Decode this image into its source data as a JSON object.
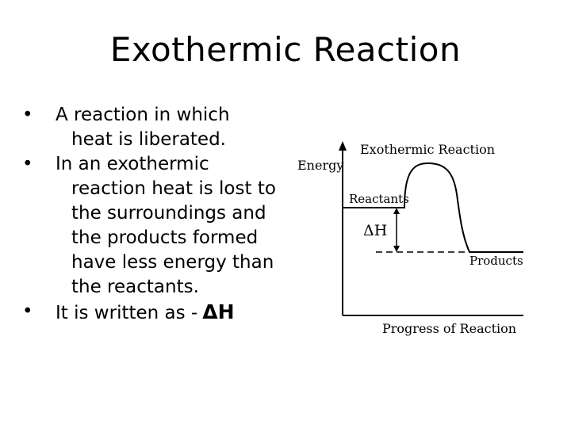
{
  "slide": {
    "title": "Exothermic Reaction",
    "bullets": [
      {
        "first_line": "A reaction in which",
        "rest": "heat is liberated."
      },
      {
        "first_line": "In an exothermic",
        "rest": "reaction heat is lost to the surroundings and the products formed have less energy than the reactants."
      },
      {
        "first_line": "It is written as -",
        "rest": "",
        "symbol": "ΔH"
      }
    ],
    "bullet_glyph": "•"
  },
  "diagram": {
    "title": "Exothermic Reaction",
    "y_axis_label": "Energy",
    "x_axis_label": "Progress of Reaction",
    "reactants_label": "Reactants",
    "products_label": "Products",
    "delta_label": "ΔH"
  }
}
